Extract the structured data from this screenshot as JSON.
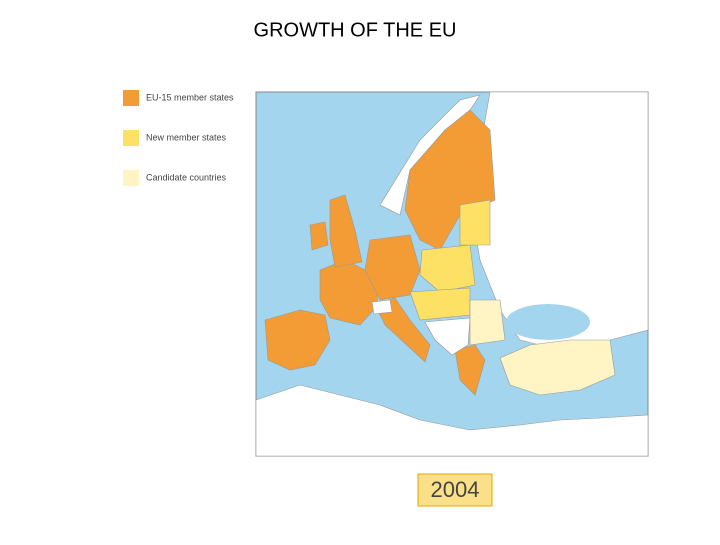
{
  "title": "GROWTH OF THE EU",
  "legend": [
    {
      "label": "EU-15 member states",
      "color": "#f39c35"
    },
    {
      "label": "New member states",
      "color": "#fde165"
    },
    {
      "label": "Candidate countries",
      "color": "#fef4c4"
    }
  ],
  "year": "2004"
}
